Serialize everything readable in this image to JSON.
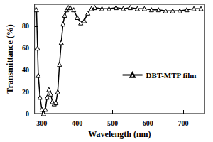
{
  "chart_data": {
    "type": "line",
    "x_label": "Wavelength (nm)",
    "y_label": "Transmittance (%)",
    "series": [
      {
        "name": "DBT-MTP film",
        "color": "#000000",
        "marker": "triangle",
        "line_style": "solid",
        "x": [
          285,
          288,
          290,
          295,
          300,
          305,
          310,
          315,
          320,
          325,
          330,
          335,
          340,
          345,
          350,
          355,
          360,
          365,
          370,
          375,
          380,
          390,
          400,
          410,
          420,
          430,
          440,
          450,
          470,
          490,
          510,
          530,
          550,
          570,
          590,
          610,
          630,
          650,
          670,
          690,
          710,
          730,
          750
        ],
        "values": [
          95,
          60,
          35,
          15,
          4,
          0,
          4,
          15,
          22,
          18,
          11,
          9,
          10,
          20,
          45,
          65,
          82,
          90,
          95,
          97,
          97,
          95,
          88,
          83,
          85,
          92,
          96,
          97,
          96,
          96,
          97,
          96,
          97,
          96,
          96,
          95,
          95,
          94,
          94,
          94,
          95,
          96,
          96
        ]
      }
    ],
    "xlim": [
      280,
      760
    ],
    "xticks": [
      300,
      400,
      500,
      600,
      700
    ],
    "ylim": [
      0,
      100
    ],
    "yticks": [
      0,
      20,
      40,
      60,
      80
    ],
    "legend": "right",
    "grid": false
  }
}
